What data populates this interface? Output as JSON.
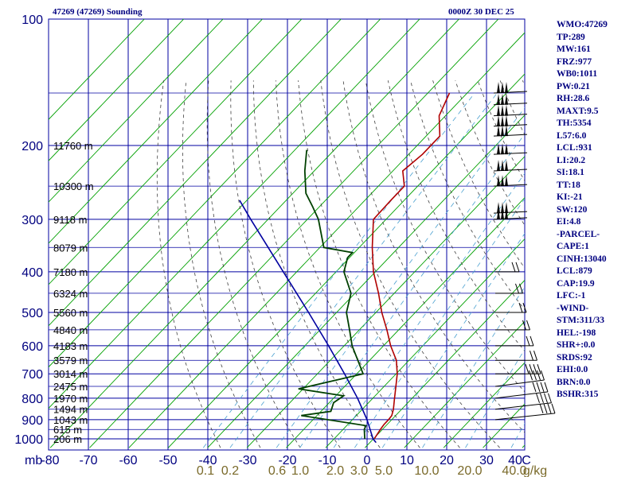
{
  "header": {
    "station": "47269 (47269) Sounding",
    "time": "0000Z 30 DEC 25"
  },
  "colors": {
    "grid": "#0000a0",
    "isotherm": "#00a000",
    "dry_adiabat": "#404040",
    "mixing_ratio": "#4aa0d0",
    "temperature": "#b00000",
    "dewpoint": "#004000",
    "parcel": "#0000a0",
    "wind": "#000000",
    "mixing_labels": "#7a6a2a"
  },
  "chart_data": {
    "type": "skew-t",
    "title": "47269 (47269) Sounding",
    "pressure_levels_mb": [
      100,
      200,
      300,
      400,
      500,
      600,
      700,
      800,
      900,
      1000
    ],
    "pressure_label_unit": "mb",
    "temperature_ticks": [
      "-80",
      "-70",
      "-60",
      "-50",
      "-40",
      "-30",
      "-20",
      "-10",
      "0",
      "10",
      "20",
      "30",
      "40",
      "C"
    ],
    "mixing_ratio_ticks": [
      "0.1",
      "0.2",
      "0.6",
      "1.0",
      "2.0",
      "3.0",
      "5.0",
      "10.0",
      "20.0",
      "40.0",
      "g/kg"
    ],
    "height_labels": [
      {
        "p": 200,
        "label": "11760 m"
      },
      {
        "p": 250,
        "label": "10300 m"
      },
      {
        "p": 300,
        "label": "9118 m"
      },
      {
        "p": 350,
        "label": "8079 m"
      },
      {
        "p": 400,
        "label": "7180 m"
      },
      {
        "p": 450,
        "label": "6324 m"
      },
      {
        "p": 500,
        "label": "5560 m"
      },
      {
        "p": 550,
        "label": "4840 m"
      },
      {
        "p": 600,
        "label": "4183 m"
      },
      {
        "p": 650,
        "label": "3579 m"
      },
      {
        "p": 700,
        "label": "3014 m"
      },
      {
        "p": 750,
        "label": "2475 m"
      },
      {
        "p": 800,
        "label": "1970 m"
      },
      {
        "p": 850,
        "label": "1494 m"
      },
      {
        "p": 900,
        "label": "1043 m"
      },
      {
        "p": 950,
        "label": "615 m"
      },
      {
        "p": 1000,
        "label": "206 m"
      }
    ],
    "temperature_profile": [
      {
        "p": 1000,
        "t": 0.2
      },
      {
        "p": 950,
        "t": -0.5
      },
      {
        "p": 925,
        "t": -0.8
      },
      {
        "p": 900,
        "t": -0.8
      },
      {
        "p": 880,
        "t": -1.0
      },
      {
        "p": 850,
        "t": -2.1
      },
      {
        "p": 800,
        "t": -4.5
      },
      {
        "p": 750,
        "t": -7.0
      },
      {
        "p": 700,
        "t": -9.7
      },
      {
        "p": 650,
        "t": -13.2
      },
      {
        "p": 600,
        "t": -18.2
      },
      {
        "p": 550,
        "t": -23.0
      },
      {
        "p": 500,
        "t": -28.5
      },
      {
        "p": 450,
        "t": -34.0
      },
      {
        "p": 400,
        "t": -40.5
      },
      {
        "p": 350,
        "t": -46.7
      },
      {
        "p": 300,
        "t": -53.2
      },
      {
        "p": 270,
        "t": -53.4
      },
      {
        "p": 250,
        "t": -53.4
      },
      {
        "p": 230,
        "t": -57.5
      },
      {
        "p": 210,
        "t": -56.5
      },
      {
        "p": 190,
        "t": -56.5
      },
      {
        "p": 170,
        "t": -61.6
      },
      {
        "p": 150,
        "t": -64.5
      }
    ],
    "dewpoint_profile": [
      {
        "p": 1000,
        "t": -2.2
      },
      {
        "p": 950,
        "t": -4.6
      },
      {
        "p": 930,
        "t": -5.1
      },
      {
        "p": 880,
        "t": -24.0
      },
      {
        "p": 860,
        "t": -17.5
      },
      {
        "p": 820,
        "t": -18.9
      },
      {
        "p": 790,
        "t": -18.0
      },
      {
        "p": 760,
        "t": -31.2
      },
      {
        "p": 700,
        "t": -18.4
      },
      {
        "p": 650,
        "t": -23.0
      },
      {
        "p": 600,
        "t": -28.0
      },
      {
        "p": 550,
        "t": -32.5
      },
      {
        "p": 500,
        "t": -37.5
      },
      {
        "p": 450,
        "t": -41.0
      },
      {
        "p": 400,
        "t": -48.0
      },
      {
        "p": 370,
        "t": -50.5
      },
      {
        "p": 360,
        "t": -50.5
      },
      {
        "p": 350,
        "t": -59.0
      },
      {
        "p": 300,
        "t": -67.2
      },
      {
        "p": 280,
        "t": -71.7
      },
      {
        "p": 260,
        "t": -76.7
      },
      {
        "p": 230,
        "t": -82.4
      },
      {
        "p": 205,
        "t": -87.0
      }
    ],
    "parcel_profile": [
      {
        "p": 1020,
        "t": 1.5
      },
      {
        "p": 1000,
        "t": -0.1
      },
      {
        "p": 900,
        "t": -6.3
      },
      {
        "p": 800,
        "t": -13.9
      },
      {
        "p": 700,
        "t": -23.1
      },
      {
        "p": 600,
        "t": -34.0
      },
      {
        "p": 500,
        "t": -47.1
      },
      {
        "p": 400,
        "t": -63.4
      },
      {
        "p": 300,
        "t": -84.4
      },
      {
        "p": 270,
        "t": -91.9
      }
    ],
    "wind_barb_levels_mb": [
      150,
      160,
      170,
      180,
      190,
      210,
      230,
      250,
      290,
      300,
      400,
      450,
      500,
      550,
      600,
      650,
      700,
      750,
      800,
      850,
      900
    ],
    "indices": [
      "WMO:47269",
      "TP:289",
      "MW:161",
      "FRZ:977",
      "WB0:1011",
      "PW:0.21",
      "RH:28.6",
      "MAXT:9.5",
      "TH:5354",
      "L57:6.0",
      "LCL:931",
      "LI:20.2",
      "SI:18.1",
      "TT:18",
      "KI:-21",
      "SW:120",
      "EI:4.8",
      "-PARCEL-",
      "CAPE:1",
      "CINH:13040",
      "LCL:879",
      "CAP:19.9",
      "LFC:-1",
      "-WIND-",
      "STM:311/33",
      "HEL:-198",
      "SHR+:0.0",
      "SRDS:92",
      "EHI:0.0",
      "BRN:0.0",
      "BSHR:315"
    ]
  }
}
